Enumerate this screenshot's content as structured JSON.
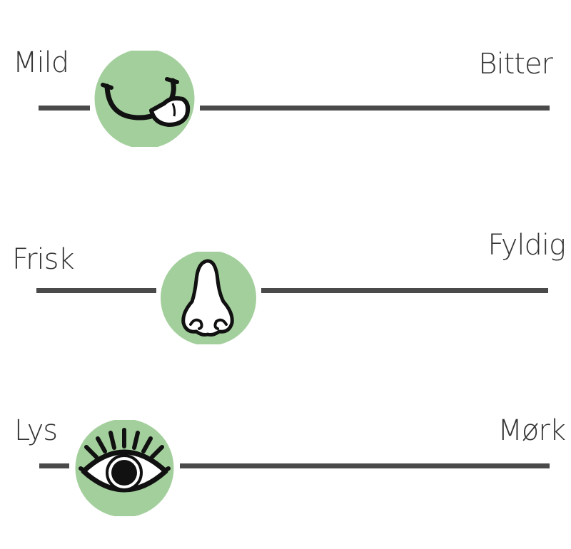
{
  "colors": {
    "knob": "#a3cf9c",
    "track": "#4a4a4a",
    "text": "#333333",
    "icon": "#111111"
  },
  "scales": [
    {
      "left_label": "Mild",
      "right_label": "Bitter",
      "icon": "tongue-out-smile-icon",
      "value": 0.21
    },
    {
      "left_label": "Frisk",
      "right_label": "Fyldig",
      "icon": "nose-icon",
      "value": 0.34
    },
    {
      "left_label": "Lys",
      "right_label": "Mørk",
      "icon": "eye-icon",
      "value": 0.17
    }
  ]
}
